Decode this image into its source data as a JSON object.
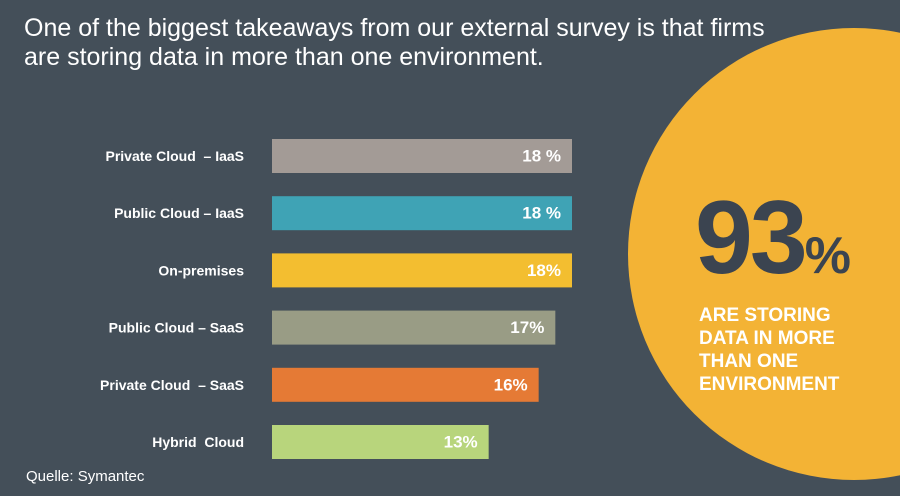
{
  "headline": {
    "line1": "One of the biggest takeaways from our external survey is that firms",
    "line2": "are storing data in more than one environment."
  },
  "colors": {
    "background": "#444f59",
    "circle": "#f3b335",
    "stat_number": "#3b4450",
    "text": "#ffffff"
  },
  "chart_data": {
    "type": "bar",
    "orientation": "horizontal",
    "categories": [
      "Private Cloud  – IaaS",
      "Public Cloud – IaaS",
      "On-premises",
      "Public Cloud – SaaS",
      "Private Cloud  – SaaS",
      "Hybrid  Cloud"
    ],
    "values": [
      18,
      18,
      18,
      17,
      16,
      13
    ],
    "value_labels": [
      "18 %",
      "18 %",
      "18%",
      "17%",
      "16%",
      "13%"
    ],
    "colors": [
      "#a39b96",
      "#3fa3b5",
      "#f3be30",
      "#999c85",
      "#e57a35",
      "#b8d57c"
    ],
    "xlim": [
      0,
      18
    ],
    "grid": false,
    "legend": "none"
  },
  "callout": {
    "number": "93",
    "unit": "%",
    "line1": "ARE STORING",
    "line2": "DATA IN MORE",
    "line3": "THAN ONE",
    "line4": "ENVIRONMENT"
  },
  "source": "Quelle: Symantec"
}
